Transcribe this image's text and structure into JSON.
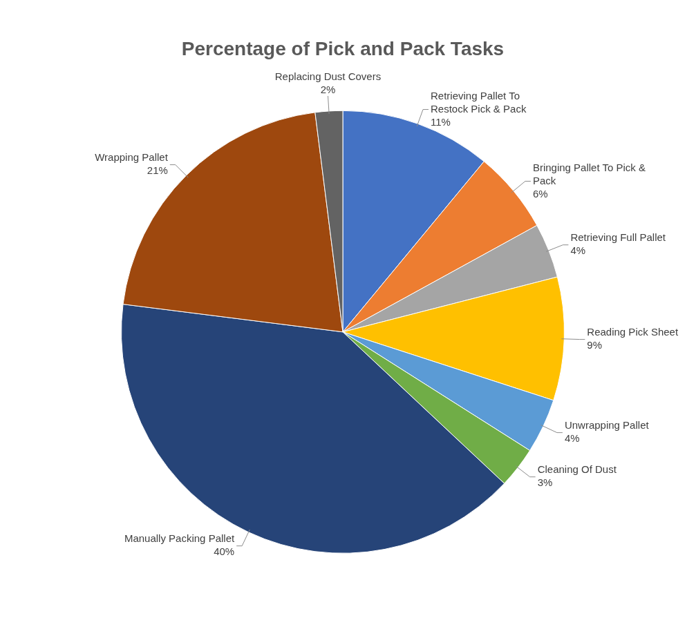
{
  "chart_data": {
    "type": "pie",
    "title": "Percentage of Pick and Pack Tasks",
    "categories": [
      "Retrieving Pallet To Restock Pick & Pack",
      "Bringing Pallet To Pick & Pack",
      "Retrieving Full Pallet",
      "Reading Pick Sheet",
      "Unwrapping Pallet",
      "Cleaning Of Dust",
      "Manually Packing Pallet",
      "Wrapping Pallet",
      "Replacing Dust Covers"
    ],
    "values": [
      11,
      6,
      4,
      9,
      4,
      3,
      40,
      21,
      2
    ],
    "value_labels": [
      "11%",
      "6%",
      "4%",
      "9%",
      "4%",
      "3%",
      "40%",
      "21%",
      "2%"
    ],
    "colors": [
      "#4472c4",
      "#ed7d31",
      "#a5a5a5",
      "#ffc000",
      "#5b9bd5",
      "#70ad47",
      "#264478",
      "#9e480e",
      "#636363"
    ],
    "legend": false
  }
}
